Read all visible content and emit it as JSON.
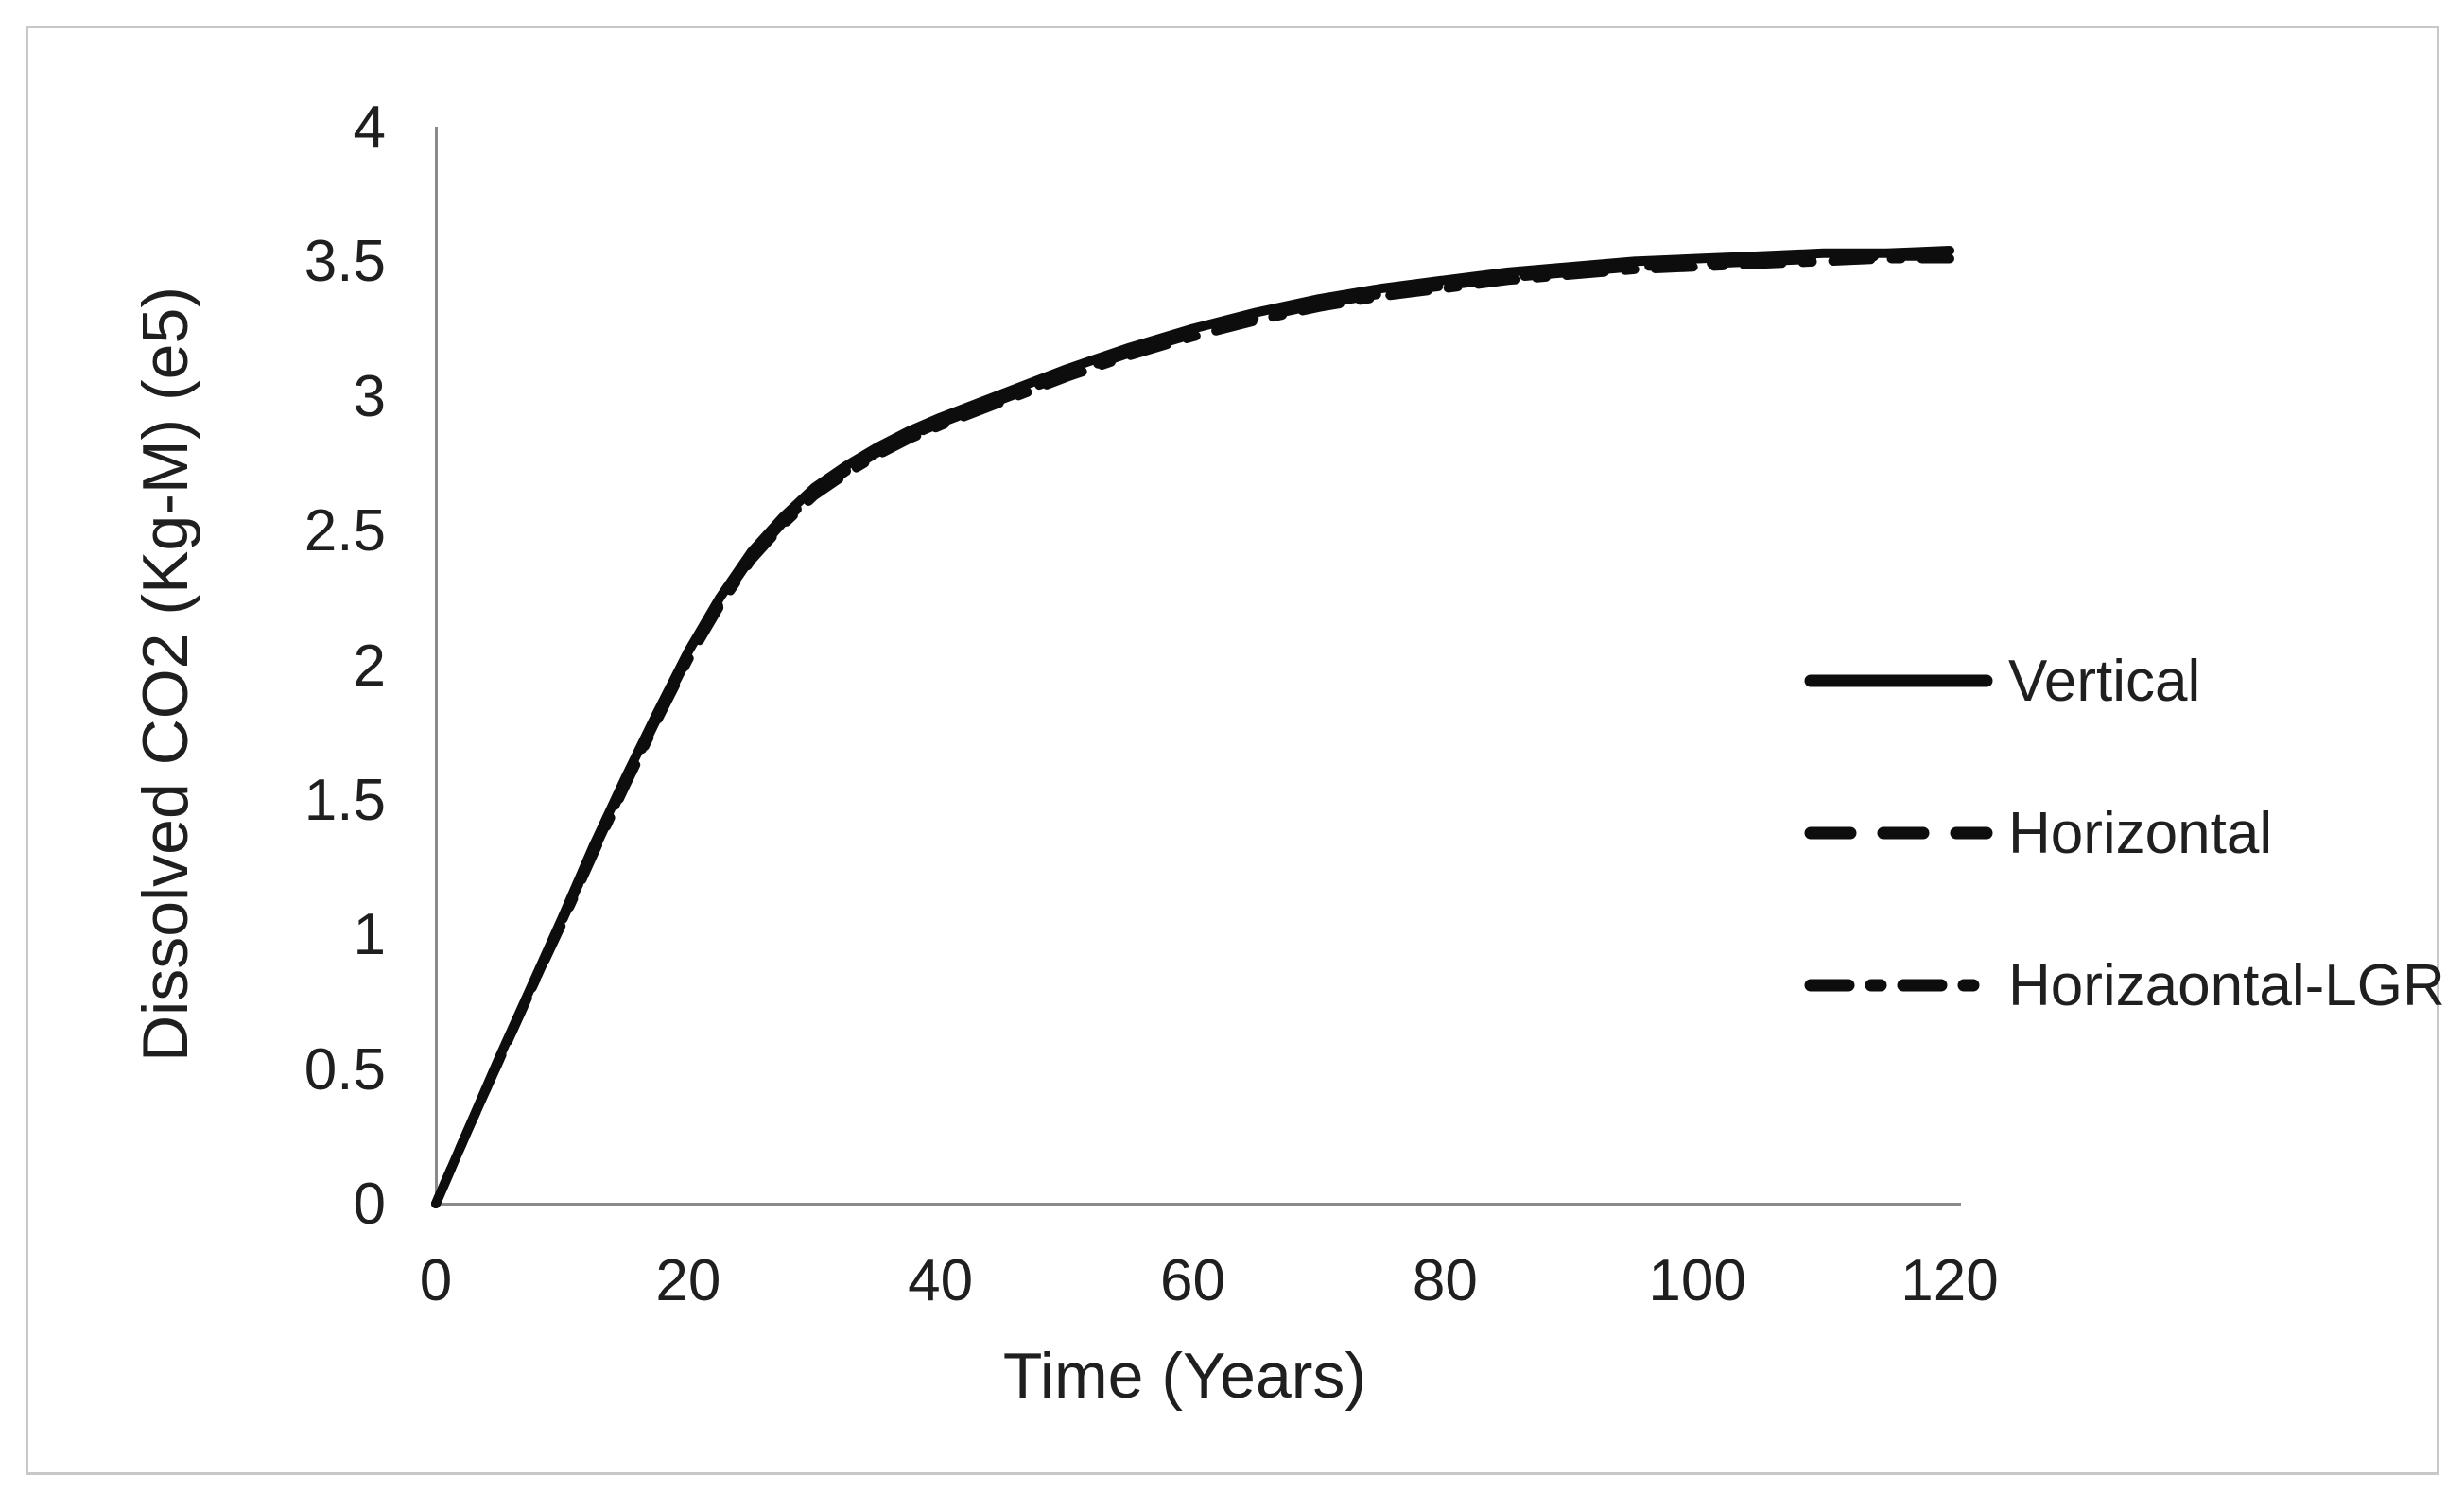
{
  "figure": {
    "background": "#ffffff",
    "border_color": "#c8c8c8",
    "text_color": "#1f1f1f"
  },
  "chart_data": {
    "type": "line",
    "title": "",
    "xlabel": "Time (Years)",
    "ylabel": "Dissolved CO2 (Kg-M) (e5)",
    "xlim": [
      0,
      120
    ],
    "ylim": [
      0,
      4
    ],
    "x_ticks": [
      0,
      20,
      40,
      60,
      80,
      100,
      120
    ],
    "y_ticks": [
      0,
      0.5,
      1,
      1.5,
      2,
      2.5,
      3,
      3.5,
      4
    ],
    "grid": false,
    "legend_position": "right",
    "line_color": "#0d0d0d",
    "axis_color": "#8a8a8a",
    "x": [
      0,
      2.5,
      5,
      7.5,
      10,
      12.5,
      15,
      17.5,
      20,
      22.5,
      25,
      27.5,
      30,
      32.5,
      35,
      37.5,
      40,
      45,
      50,
      55,
      60,
      65,
      70,
      75,
      80,
      85,
      90,
      95,
      100,
      105,
      110,
      115,
      120
    ],
    "series": [
      {
        "name": "Vertical",
        "dash": "solid",
        "values": [
          0,
          0.27,
          0.54,
          0.8,
          1.06,
          1.33,
          1.58,
          1.82,
          2.05,
          2.25,
          2.42,
          2.55,
          2.66,
          2.74,
          2.81,
          2.87,
          2.92,
          3.01,
          3.1,
          3.18,
          3.25,
          3.31,
          3.36,
          3.4,
          3.43,
          3.46,
          3.48,
          3.5,
          3.51,
          3.52,
          3.53,
          3.53,
          3.54
        ]
      },
      {
        "name": "Horizontal",
        "dash": "dashed",
        "values": [
          0,
          0.27,
          0.53,
          0.79,
          1.05,
          1.31,
          1.56,
          1.8,
          2.03,
          2.23,
          2.4,
          2.53,
          2.64,
          2.72,
          2.79,
          2.85,
          2.9,
          2.99,
          3.08,
          3.16,
          3.23,
          3.29,
          3.34,
          3.38,
          3.41,
          3.44,
          3.46,
          3.48,
          3.49,
          3.5,
          3.51,
          3.52,
          3.52
        ]
      },
      {
        "name": "Horizaontal-LGR",
        "dash": "dashdot",
        "values": [
          0,
          0.27,
          0.53,
          0.79,
          1.04,
          1.3,
          1.55,
          1.79,
          2.02,
          2.22,
          2.39,
          2.52,
          2.63,
          2.71,
          2.78,
          2.84,
          2.89,
          2.98,
          3.07,
          3.15,
          3.22,
          3.28,
          3.33,
          3.37,
          3.4,
          3.43,
          3.45,
          3.47,
          3.48,
          3.49,
          3.5,
          3.51,
          3.51
        ]
      }
    ]
  }
}
